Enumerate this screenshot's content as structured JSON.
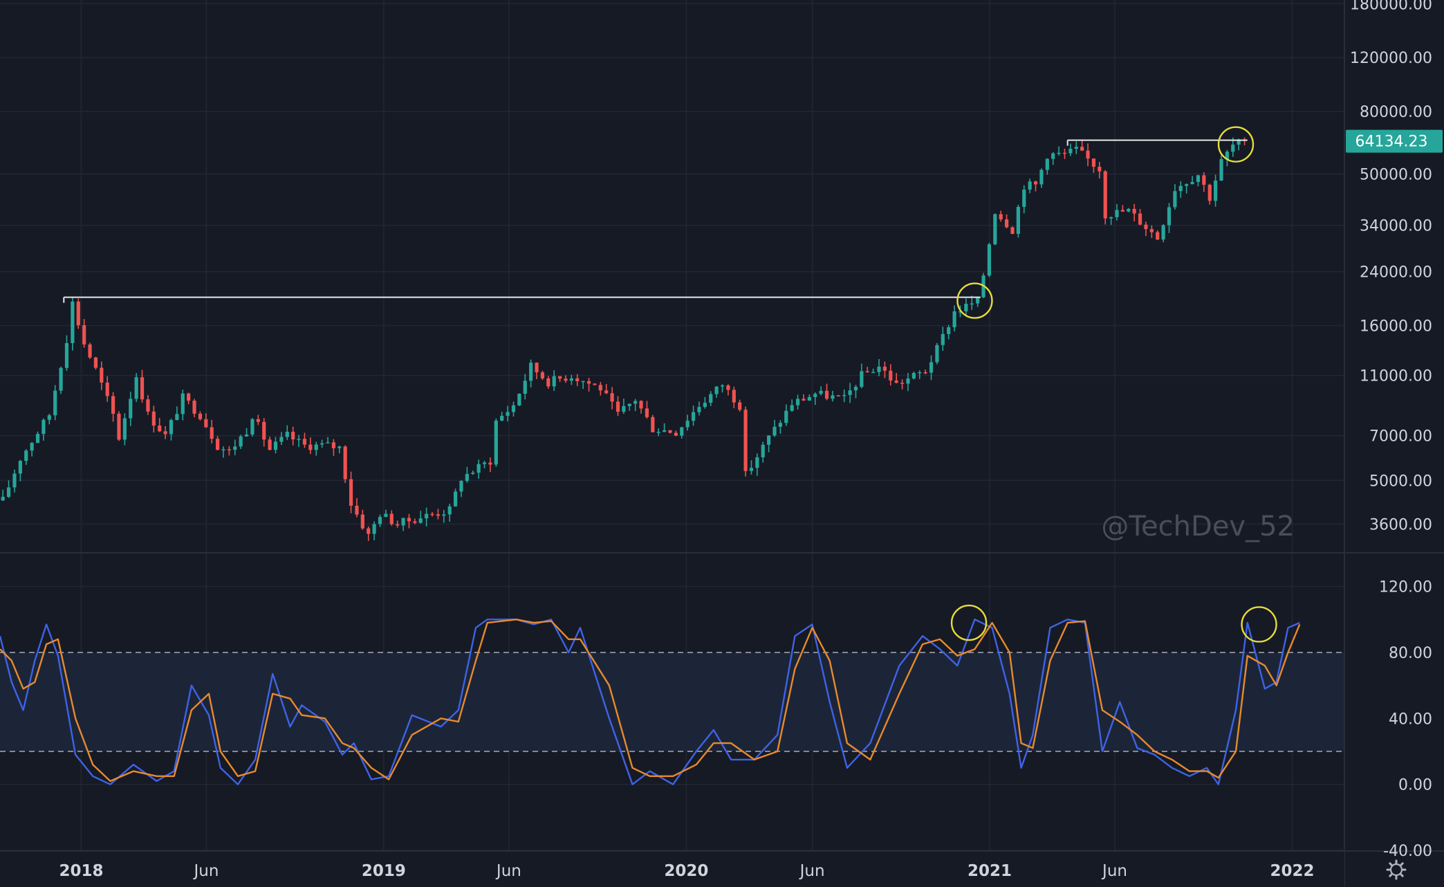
{
  "chart_data": [
    {
      "type": "candlestick",
      "interval": "weekly",
      "scale": "log",
      "ylim": [
        2900,
        185000
      ],
      "y_tick_labels": [
        "180000.00",
        "120000.00",
        "80000.00",
        "50000.00",
        "34000.00",
        "24000.00",
        "16000.00",
        "11000.00",
        "7000.00",
        "5000.00",
        "3600.00"
      ],
      "x_tick_labels": [
        {
          "label": "2018",
          "date": "2018-01-01",
          "year": true
        },
        {
          "label": "Jun",
          "date": "2018-06-01",
          "year": false
        },
        {
          "label": "2019",
          "date": "2019-01-01",
          "year": true
        },
        {
          "label": "Jun",
          "date": "2019-06-01",
          "year": false
        },
        {
          "label": "2020",
          "date": "2020-01-01",
          "year": true
        },
        {
          "label": "Jun",
          "date": "2020-06-01",
          "year": false
        },
        {
          "label": "2021",
          "date": "2021-01-01",
          "year": true
        },
        {
          "label": "Jun",
          "date": "2021-06-01",
          "year": false
        },
        {
          "label": "2022",
          "date": "2022-01-01",
          "year": true
        }
      ],
      "xlim": [
        "2017-09-25",
        "2022-03-05"
      ],
      "grid": true,
      "last_price_label": "64134.23",
      "watermark": "@TechDev_52",
      "anchors": [
        [
          "2017-09-25",
          4300
        ],
        [
          "2017-10-16",
          5900
        ],
        [
          "2017-11-20",
          8200
        ],
        [
          "2017-12-11",
          14500
        ],
        [
          "2017-12-18",
          19000
        ],
        [
          "2018-01-01",
          14000
        ],
        [
          "2018-01-15",
          11500
        ],
        [
          "2018-02-05",
          8200
        ],
        [
          "2018-02-12",
          6900
        ],
        [
          "2018-03-05",
          11000
        ],
        [
          "2018-03-19",
          8200
        ],
        [
          "2018-04-09",
          7000
        ],
        [
          "2018-04-30",
          9300
        ],
        [
          "2018-05-21",
          8200
        ],
        [
          "2018-06-11",
          6500
        ],
        [
          "2018-06-25",
          6200
        ],
        [
          "2018-07-16",
          7300
        ],
        [
          "2018-07-23",
          8200
        ],
        [
          "2018-08-13",
          6300
        ],
        [
          "2018-09-03",
          7000
        ],
        [
          "2018-09-24",
          6500
        ],
        [
          "2018-10-22",
          6500
        ],
        [
          "2018-11-05",
          6400
        ],
        [
          "2018-11-19",
          4200
        ],
        [
          "2018-12-10",
          3300
        ],
        [
          "2018-12-24",
          3900
        ],
        [
          "2019-01-14",
          3600
        ],
        [
          "2019-02-11",
          3800
        ],
        [
          "2019-03-18",
          4000
        ],
        [
          "2019-04-01",
          5100
        ],
        [
          "2019-05-06",
          5800
        ],
        [
          "2019-05-13",
          7800
        ],
        [
          "2019-06-03",
          8800
        ],
        [
          "2019-06-24",
          11800
        ],
        [
          "2019-07-15",
          10500
        ],
        [
          "2019-08-12",
          11000
        ],
        [
          "2019-09-16",
          10000
        ],
        [
          "2019-10-07",
          8200
        ],
        [
          "2019-10-28",
          9200
        ],
        [
          "2019-11-18",
          7400
        ],
        [
          "2019-12-16",
          7200
        ],
        [
          "2020-01-13",
          8800
        ],
        [
          "2020-02-10",
          10300
        ],
        [
          "2020-03-02",
          8800
        ],
        [
          "2020-03-09",
          5200
        ],
        [
          "2020-04-06",
          6900
        ],
        [
          "2020-05-04",
          8900
        ],
        [
          "2020-06-01",
          9600
        ],
        [
          "2020-07-06",
          9200
        ],
        [
          "2020-07-27",
          11000
        ],
        [
          "2020-08-17",
          11800
        ],
        [
          "2020-09-07",
          10300
        ],
        [
          "2020-10-12",
          11400
        ],
        [
          "2020-10-26",
          13400
        ],
        [
          "2020-11-16",
          17800
        ],
        [
          "2020-12-14",
          19200
        ],
        [
          "2020-12-21",
          23500
        ],
        [
          "2021-01-04",
          38000
        ],
        [
          "2021-01-25",
          33000
        ],
        [
          "2021-02-08",
          46000
        ],
        [
          "2021-02-22",
          46000
        ],
        [
          "2021-03-08",
          58000
        ],
        [
          "2021-03-29",
          58000
        ],
        [
          "2021-04-12",
          60000
        ],
        [
          "2021-05-10",
          52000
        ],
        [
          "2021-05-17",
          37000
        ],
        [
          "2021-06-14",
          38000
        ],
        [
          "2021-07-19",
          31000
        ],
        [
          "2021-08-09",
          45000
        ],
        [
          "2021-09-06",
          50000
        ],
        [
          "2021-09-20",
          42000
        ],
        [
          "2021-10-04",
          55000
        ],
        [
          "2021-10-18",
          62000
        ],
        [
          "2021-11-01",
          64134
        ]
      ],
      "horizontal_lines": [
        {
          "start": "2017-12-11",
          "end": "2020-12-21",
          "price": 19800
        },
        {
          "start": "2021-04-05",
          "end": "2021-11-08",
          "price": 64500
        }
      ],
      "highlight_circles": [
        {
          "date": "2020-12-14",
          "price": 19300
        },
        {
          "date": "2021-10-25",
          "price": 62500
        }
      ]
    },
    {
      "type": "line",
      "name_hidden": true,
      "ylim": [
        -40,
        140
      ],
      "y_tick_labels": [
        "120.00",
        "80.00",
        "40.00",
        "0.00",
        "-40.00"
      ],
      "bands": {
        "upper": 80,
        "lower": 20
      },
      "series": [
        {
          "color": "#3e63e6",
          "points": [
            [
              "2017-09-25",
              90
            ],
            [
              "2017-10-09",
              62
            ],
            [
              "2017-10-23",
              45
            ],
            [
              "2017-11-06",
              75
            ],
            [
              "2017-11-20",
              97
            ],
            [
              "2017-12-04",
              78
            ],
            [
              "2017-12-25",
              18
            ],
            [
              "2018-01-15",
              5
            ],
            [
              "2018-02-05",
              0
            ],
            [
              "2018-03-05",
              12
            ],
            [
              "2018-04-02",
              2
            ],
            [
              "2018-04-23",
              8
            ],
            [
              "2018-05-14",
              60
            ],
            [
              "2018-06-04",
              42
            ],
            [
              "2018-06-18",
              10
            ],
            [
              "2018-07-09",
              0
            ],
            [
              "2018-07-30",
              15
            ],
            [
              "2018-08-20",
              67
            ],
            [
              "2018-09-10",
              35
            ],
            [
              "2018-09-24",
              48
            ],
            [
              "2018-10-22",
              38
            ],
            [
              "2018-11-12",
              18
            ],
            [
              "2018-11-26",
              25
            ],
            [
              "2018-12-17",
              3
            ],
            [
              "2019-01-07",
              5
            ],
            [
              "2019-02-04",
              42
            ],
            [
              "2019-03-11",
              35
            ],
            [
              "2019-04-01",
              45
            ],
            [
              "2019-04-22",
              95
            ],
            [
              "2019-05-06",
              100
            ],
            [
              "2019-06-10",
              100
            ],
            [
              "2019-07-01",
              97
            ],
            [
              "2019-07-22",
              100
            ],
            [
              "2019-08-12",
              80
            ],
            [
              "2019-08-26",
              95
            ],
            [
              "2019-09-30",
              40
            ],
            [
              "2019-10-28",
              0
            ],
            [
              "2019-11-18",
              8
            ],
            [
              "2019-12-16",
              0
            ],
            [
              "2020-01-13",
              20
            ],
            [
              "2020-02-03",
              33
            ],
            [
              "2020-02-24",
              15
            ],
            [
              "2020-03-23",
              15
            ],
            [
              "2020-04-20",
              30
            ],
            [
              "2020-05-11",
              90
            ],
            [
              "2020-06-01",
              97
            ],
            [
              "2020-06-22",
              50
            ],
            [
              "2020-07-13",
              10
            ],
            [
              "2020-08-10",
              25
            ],
            [
              "2020-09-14",
              72
            ],
            [
              "2020-10-12",
              90
            ],
            [
              "2020-11-02",
              82
            ],
            [
              "2020-11-23",
              72
            ],
            [
              "2020-12-14",
              100
            ],
            [
              "2021-01-04",
              95
            ],
            [
              "2021-01-25",
              55
            ],
            [
              "2021-02-08",
              10
            ],
            [
              "2021-02-22",
              30
            ],
            [
              "2021-03-15",
              95
            ],
            [
              "2021-04-05",
              100
            ],
            [
              "2021-04-26",
              98
            ],
            [
              "2021-05-17",
              20
            ],
            [
              "2021-06-07",
              50
            ],
            [
              "2021-06-28",
              22
            ],
            [
              "2021-07-19",
              18
            ],
            [
              "2021-08-09",
              10
            ],
            [
              "2021-08-30",
              5
            ],
            [
              "2021-09-20",
              10
            ],
            [
              "2021-10-04",
              0
            ],
            [
              "2021-10-25",
              45
            ],
            [
              "2021-11-08",
              98
            ],
            [
              "2021-11-29",
              58
            ],
            [
              "2021-12-13",
              62
            ],
            [
              "2021-12-27",
              95
            ],
            [
              "2022-01-10",
              98
            ]
          ]
        },
        {
          "color": "#e98a2d",
          "points": [
            [
              "2017-09-25",
              82
            ],
            [
              "2017-10-09",
              75
            ],
            [
              "2017-10-23",
              58
            ],
            [
              "2017-11-06",
              62
            ],
            [
              "2017-11-20",
              85
            ],
            [
              "2017-12-04",
              88
            ],
            [
              "2017-12-25",
              40
            ],
            [
              "2018-01-15",
              12
            ],
            [
              "2018-02-05",
              2
            ],
            [
              "2018-03-05",
              8
            ],
            [
              "2018-04-02",
              5
            ],
            [
              "2018-04-23",
              5
            ],
            [
              "2018-05-14",
              45
            ],
            [
              "2018-06-04",
              55
            ],
            [
              "2018-06-18",
              20
            ],
            [
              "2018-07-09",
              5
            ],
            [
              "2018-07-30",
              8
            ],
            [
              "2018-08-20",
              55
            ],
            [
              "2018-09-10",
              52
            ],
            [
              "2018-09-24",
              42
            ],
            [
              "2018-10-22",
              40
            ],
            [
              "2018-11-12",
              25
            ],
            [
              "2018-11-26",
              22
            ],
            [
              "2018-12-17",
              10
            ],
            [
              "2019-01-07",
              3
            ],
            [
              "2019-02-04",
              30
            ],
            [
              "2019-03-11",
              40
            ],
            [
              "2019-04-01",
              38
            ],
            [
              "2019-04-22",
              75
            ],
            [
              "2019-05-06",
              98
            ],
            [
              "2019-06-10",
              100
            ],
            [
              "2019-07-01",
              98
            ],
            [
              "2019-07-22",
              99
            ],
            [
              "2019-08-12",
              88
            ],
            [
              "2019-08-26",
              88
            ],
            [
              "2019-09-30",
              60
            ],
            [
              "2019-10-28",
              10
            ],
            [
              "2019-11-18",
              5
            ],
            [
              "2019-12-16",
              5
            ],
            [
              "2020-01-13",
              12
            ],
            [
              "2020-02-03",
              25
            ],
            [
              "2020-02-24",
              25
            ],
            [
              "2020-03-23",
              15
            ],
            [
              "2020-04-20",
              20
            ],
            [
              "2020-05-11",
              70
            ],
            [
              "2020-06-01",
              95
            ],
            [
              "2020-06-22",
              75
            ],
            [
              "2020-07-13",
              25
            ],
            [
              "2020-08-10",
              15
            ],
            [
              "2020-09-14",
              55
            ],
            [
              "2020-10-12",
              85
            ],
            [
              "2020-11-02",
              88
            ],
            [
              "2020-11-23",
              78
            ],
            [
              "2020-12-14",
              82
            ],
            [
              "2021-01-04",
              98
            ],
            [
              "2021-01-25",
              80
            ],
            [
              "2021-02-08",
              25
            ],
            [
              "2021-02-22",
              22
            ],
            [
              "2021-03-15",
              75
            ],
            [
              "2021-04-05",
              98
            ],
            [
              "2021-04-26",
              99
            ],
            [
              "2021-05-17",
              45
            ],
            [
              "2021-06-07",
              38
            ],
            [
              "2021-06-28",
              30
            ],
            [
              "2021-07-19",
              20
            ],
            [
              "2021-08-09",
              15
            ],
            [
              "2021-08-30",
              8
            ],
            [
              "2021-09-20",
              8
            ],
            [
              "2021-10-04",
              4
            ],
            [
              "2021-10-25",
              20
            ],
            [
              "2021-11-08",
              78
            ],
            [
              "2021-11-29",
              72
            ],
            [
              "2021-12-13",
              60
            ],
            [
              "2021-12-27",
              80
            ],
            [
              "2022-01-10",
              97
            ]
          ]
        }
      ],
      "highlight_circles": [
        {
          "date": "2020-12-07",
          "value": 98
        },
        {
          "date": "2021-11-22",
          "value": 97
        }
      ]
    }
  ],
  "colors": {
    "background": "#161a25",
    "grid": "#232735",
    "up": "#26a69a",
    "down": "#ef5350",
    "level_line": "#e8e8e8",
    "circle": "#e6dd3b",
    "band_fill": "#1c2538",
    "band_line": "#9598a1",
    "price_tag": "#26a69a",
    "text": "#d1d4dc"
  },
  "icons": {
    "settings": "gear-icon"
  }
}
